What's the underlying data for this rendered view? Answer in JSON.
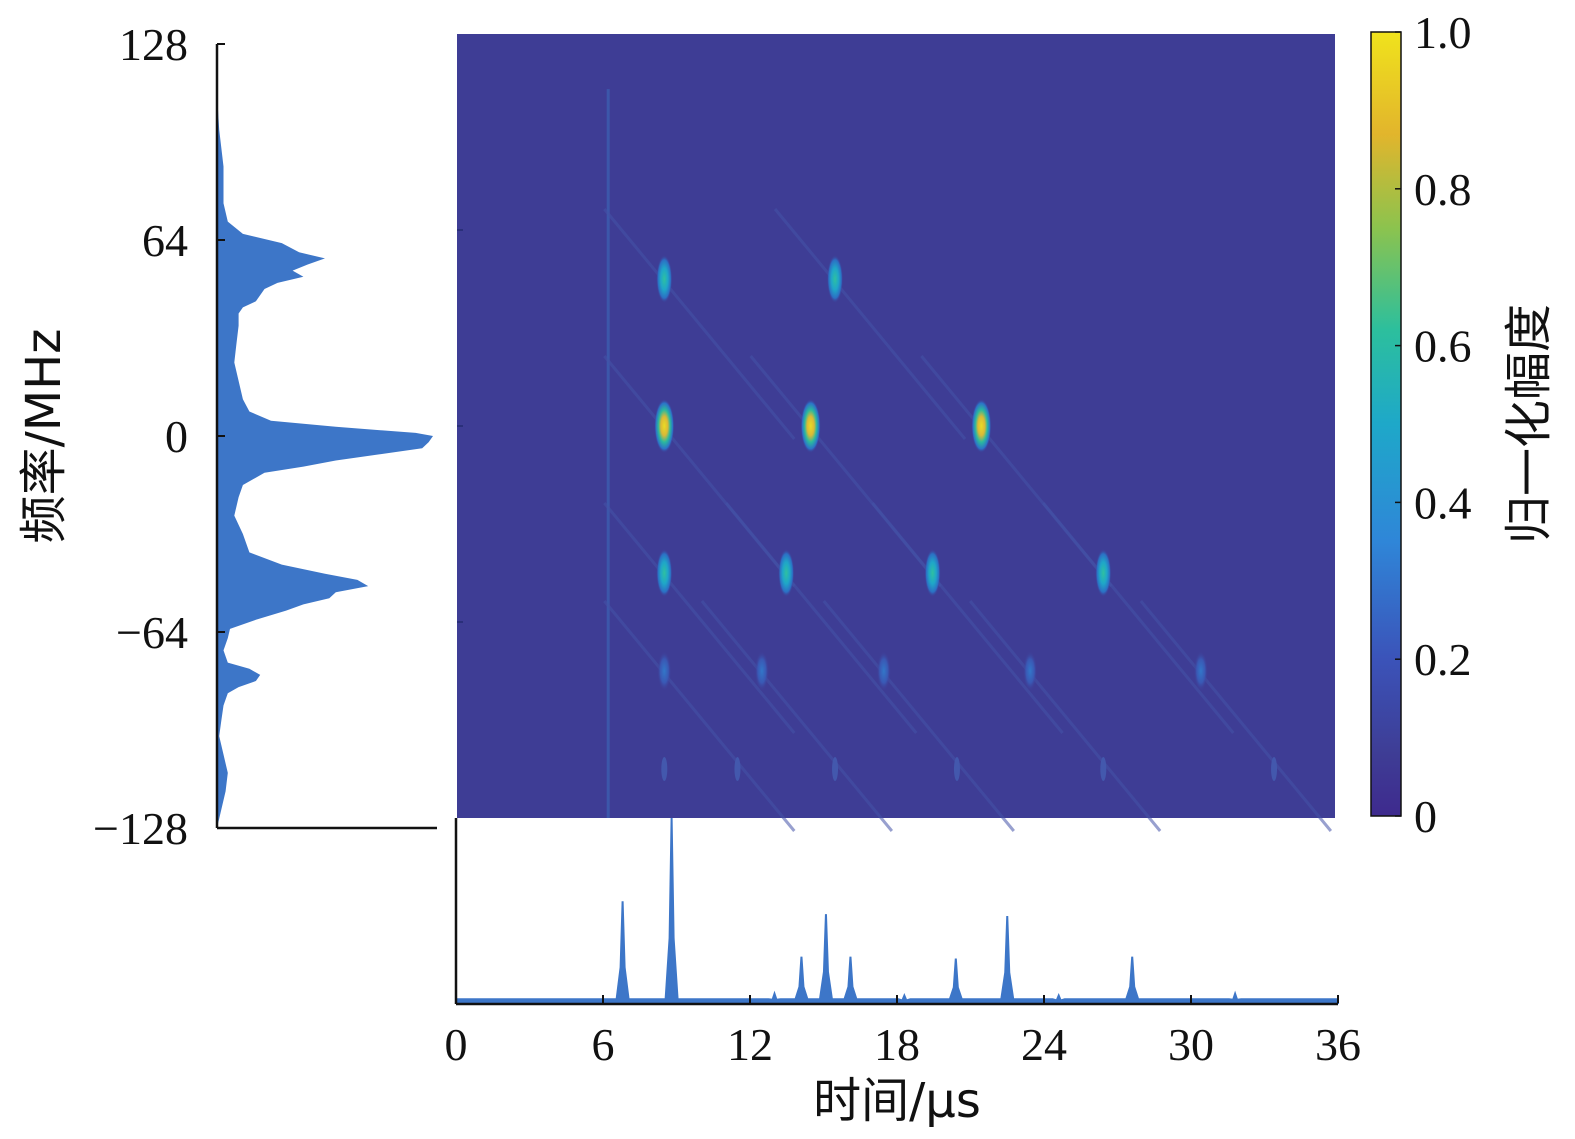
{
  "chart_data": [
    {
      "type": "heatmap",
      "xlim": [
        0,
        36
      ],
      "ylim": [
        -128,
        128
      ],
      "color_range": [
        0,
        1
      ],
      "colormap": "parula",
      "background_color": "#3e3d95",
      "harmonic_rows": [
        {
          "frequency": 48,
          "peaks": [
            {
              "time": 8.5,
              "amplitude": 0.42
            },
            {
              "time": 15.5,
              "amplitude": 0.42
            }
          ]
        },
        {
          "frequency": 0,
          "peaks": [
            {
              "time": 8.5,
              "amplitude": 0.88
            },
            {
              "time": 14.5,
              "amplitude": 0.88
            },
            {
              "time": 21.5,
              "amplitude": 0.88
            }
          ]
        },
        {
          "frequency": -48,
          "peaks": [
            {
              "time": 8.5,
              "amplitude": 0.42
            },
            {
              "time": 13.5,
              "amplitude": 0.38
            },
            {
              "time": 19.5,
              "amplitude": 0.38
            },
            {
              "time": 26.5,
              "amplitude": 0.36
            }
          ]
        },
        {
          "frequency": -80,
          "peaks": [
            {
              "time": 8.5,
              "amplitude": 0.2
            },
            {
              "time": 12.5,
              "amplitude": 0.2
            },
            {
              "time": 17.5,
              "amplitude": 0.2
            },
            {
              "time": 23.5,
              "amplitude": 0.2
            },
            {
              "time": 30.5,
              "amplitude": 0.2
            }
          ]
        }
      ],
      "vertical_line_time": 6.2
    },
    {
      "type": "area",
      "orientation": "horizontal",
      "yticks": [
        "128",
        "64",
        "0",
        "−64",
        "−128"
      ],
      "ylabel": "频率/MHz",
      "ylim": [
        -128,
        128
      ],
      "frequency": [
        128,
        112,
        100,
        88,
        76,
        70,
        66,
        63,
        60,
        58,
        56,
        54,
        52,
        50,
        48,
        46,
        44,
        42,
        40,
        36,
        30,
        24,
        18,
        12,
        8,
        5,
        3,
        1,
        0,
        -2,
        -4,
        -6,
        -8,
        -10,
        -12,
        -16,
        -20,
        -26,
        -32,
        -38,
        -42,
        -45,
        -47,
        -49,
        -51,
        -53,
        -55,
        -57,
        -60,
        -63,
        -66,
        -70,
        -74,
        -76,
        -78,
        -80,
        -82,
        -84,
        -88,
        -93,
        -98,
        -104,
        -110,
        -116,
        -122,
        -128
      ],
      "amplitude": [
        0.0,
        0.0,
        0.01,
        0.03,
        0.03,
        0.05,
        0.12,
        0.3,
        0.38,
        0.5,
        0.42,
        0.35,
        0.4,
        0.28,
        0.22,
        0.2,
        0.18,
        0.12,
        0.1,
        0.1,
        0.09,
        0.08,
        0.1,
        0.12,
        0.15,
        0.25,
        0.55,
        0.92,
        1.0,
        0.98,
        0.95,
        0.75,
        0.55,
        0.4,
        0.22,
        0.12,
        0.1,
        0.08,
        0.12,
        0.15,
        0.3,
        0.5,
        0.65,
        0.7,
        0.55,
        0.52,
        0.4,
        0.32,
        0.18,
        0.06,
        0.05,
        0.03,
        0.05,
        0.15,
        0.2,
        0.18,
        0.1,
        0.05,
        0.03,
        0.02,
        0.01,
        0.03,
        0.05,
        0.04,
        0.02,
        0.0
      ]
    },
    {
      "type": "line",
      "xticks": [
        "0",
        "6",
        "12",
        "18",
        "24",
        "30",
        "36"
      ],
      "xlabel": "时间/μs",
      "xlim": [
        0,
        36
      ],
      "baseline": 0.02,
      "peaks": [
        {
          "time": 6.8,
          "amplitude": 0.55
        },
        {
          "time": 8.8,
          "amplitude": 1.0
        },
        {
          "time": 13.0,
          "amplitude": 0.05
        },
        {
          "time": 14.1,
          "amplitude": 0.25
        },
        {
          "time": 15.1,
          "amplitude": 0.48
        },
        {
          "time": 16.1,
          "amplitude": 0.25
        },
        {
          "time": 18.3,
          "amplitude": 0.04
        },
        {
          "time": 20.4,
          "amplitude": 0.24
        },
        {
          "time": 22.5,
          "amplitude": 0.47
        },
        {
          "time": 24.6,
          "amplitude": 0.04
        },
        {
          "time": 27.6,
          "amplitude": 0.25
        },
        {
          "time": 31.8,
          "amplitude": 0.05
        }
      ]
    },
    {
      "type": "colorbar",
      "range": [
        0,
        1
      ],
      "ticks": [
        "1.0",
        "0.8",
        "0.6",
        "0.4",
        "0.2",
        "0"
      ],
      "label": "归一化幅度"
    }
  ],
  "colors": {
    "bar_fill": "#3d76c8",
    "axis": "#111111",
    "spot_peak": "#e7c532"
  }
}
